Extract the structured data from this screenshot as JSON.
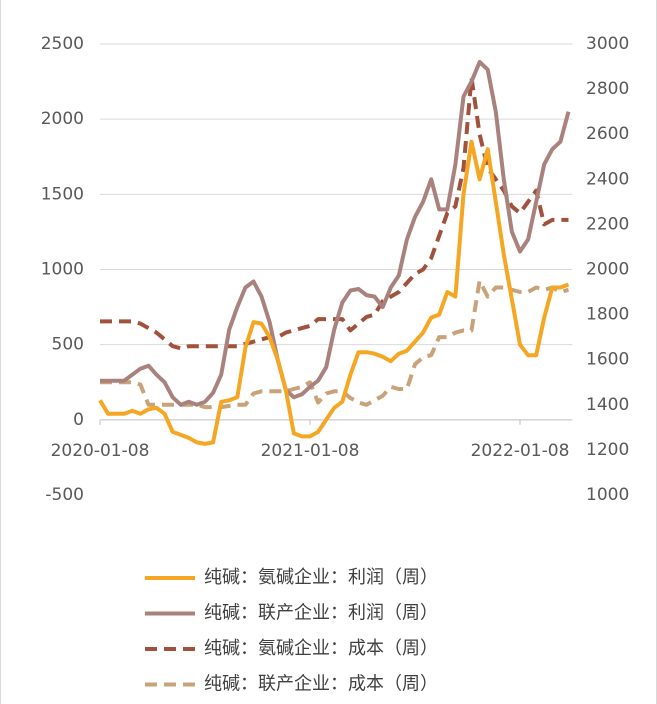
{
  "chart_data": {
    "type": "line",
    "categories": [
      "2020-01-08",
      null,
      null,
      null,
      null,
      null,
      null,
      null,
      null,
      null,
      null,
      null,
      null,
      null,
      null,
      null,
      null,
      null,
      null,
      null,
      null,
      null,
      null,
      null,
      null,
      null,
      "2021-01-08",
      null,
      null,
      null,
      null,
      null,
      null,
      null,
      null,
      null,
      null,
      null,
      null,
      null,
      null,
      null,
      null,
      null,
      null,
      null,
      null,
      null,
      null,
      null,
      null,
      null,
      "2022-01-08",
      null,
      null,
      null,
      null,
      null,
      null
    ],
    "ylim": [
      -500,
      2500
    ],
    "yticks": [
      -500,
      0,
      500,
      1000,
      1500,
      2000,
      2500
    ],
    "y2lim": [
      1000,
      3000
    ],
    "y2ticks": [
      1000,
      1200,
      1400,
      1600,
      1800,
      2000,
      2200,
      2400,
      2600,
      2800,
      3000
    ],
    "grid": true,
    "legend": "bottom",
    "series": [
      {
        "name": "纯碱：氨碱企业：利润（周）",
        "color": "#f5a623",
        "dashed": false,
        "values": [
          130,
          40,
          40,
          40,
          60,
          40,
          70,
          80,
          40,
          -80,
          -100,
          -120,
          -150,
          -160,
          -150,
          120,
          130,
          150,
          480,
          650,
          640,
          550,
          400,
          200,
          -90,
          -110,
          -110,
          -80,
          0,
          80,
          120,
          300,
          450,
          450,
          440,
          420,
          390,
          440,
          460,
          520,
          580,
          680,
          700,
          850,
          820,
          1500,
          1850,
          1600,
          1800,
          1450,
          1100,
          800,
          500,
          430,
          430,
          680,
          880,
          880,
          900
        ]
      },
      {
        "name": "纯碱：联产企业：利润（周）",
        "color": "#a9827d",
        "dashed": false,
        "values": [
          260,
          260,
          260,
          260,
          300,
          340,
          360,
          300,
          250,
          150,
          100,
          120,
          100,
          120,
          180,
          300,
          600,
          750,
          880,
          920,
          820,
          650,
          400,
          200,
          150,
          170,
          220,
          260,
          350,
          600,
          780,
          860,
          870,
          830,
          820,
          750,
          880,
          960,
          1200,
          1350,
          1450,
          1600,
          1400,
          1400,
          1700,
          2150,
          2250,
          2380,
          2330,
          2050,
          1600,
          1250,
          1120,
          1200,
          1450,
          1700,
          1800,
          1850,
          2050
        ]
      },
      {
        "name": "纯碱：氨碱企业：成本（周）",
        "color": "#a0523d",
        "dashed": true,
        "axis": "y2",
        "values": [
          1770,
          1770,
          1770,
          1770,
          1770,
          1760,
          1740,
          1720,
          1690,
          1660,
          1650,
          1660,
          1660,
          1660,
          1660,
          1660,
          1660,
          1660,
          1670,
          1680,
          1690,
          1700,
          1700,
          1720,
          1730,
          1740,
          1750,
          1780,
          1780,
          1780,
          1780,
          1730,
          1760,
          1790,
          1800,
          1860,
          1880,
          1900,
          1940,
          1980,
          2000,
          2050,
          2150,
          2250,
          2280,
          2450,
          2850,
          2600,
          2450,
          2400,
          2350,
          2280,
          2250,
          2300,
          2350,
          2200,
          2220,
          2220,
          2220
        ]
      },
      {
        "name": "纯碱：联产企业：成本（周）",
        "color": "#c9a27a",
        "dashed": true,
        "axis": "y2",
        "values": [
          1500,
          1500,
          1500,
          1500,
          1500,
          1490,
          1400,
          1400,
          1400,
          1400,
          1400,
          1400,
          1400,
          1390,
          1390,
          1390,
          1395,
          1400,
          1400,
          1450,
          1460,
          1460,
          1460,
          1460,
          1470,
          1480,
          1500,
          1410,
          1450,
          1460,
          1460,
          1430,
          1410,
          1400,
          1420,
          1440,
          1480,
          1470,
          1470,
          1580,
          1610,
          1620,
          1700,
          1700,
          1720,
          1730,
          1730,
          1950,
          1880,
          1920,
          1920,
          1910,
          1900,
          1900,
          1920,
          1910,
          1920,
          1900,
          1910
        ]
      }
    ]
  }
}
